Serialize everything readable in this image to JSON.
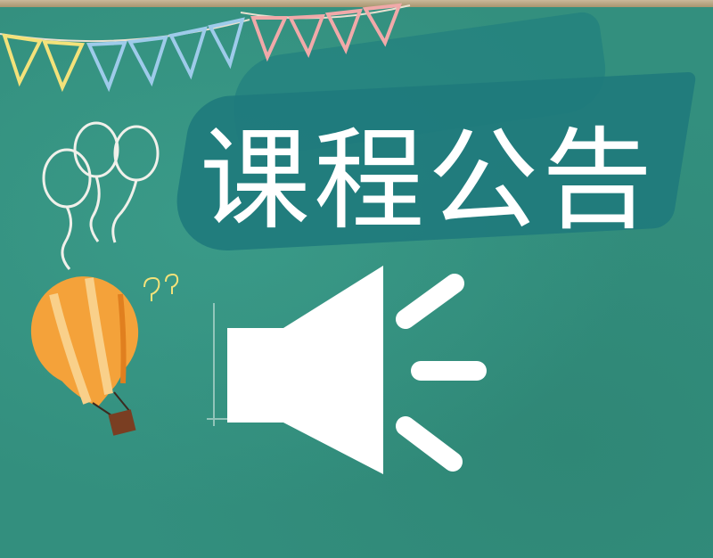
{
  "banner": {
    "title": "课程公告"
  },
  "icons": {
    "speaker": "speaker-volume-icon",
    "balloons": "balloons-doodle",
    "hot_air_balloon": "hot-air-balloon",
    "bunting": "pennant-bunting"
  },
  "colors": {
    "chalkboard": "#338f7e",
    "brush": "#1f7a7c",
    "text": "#ffffff",
    "balloon_orange": "#f4a23a"
  }
}
